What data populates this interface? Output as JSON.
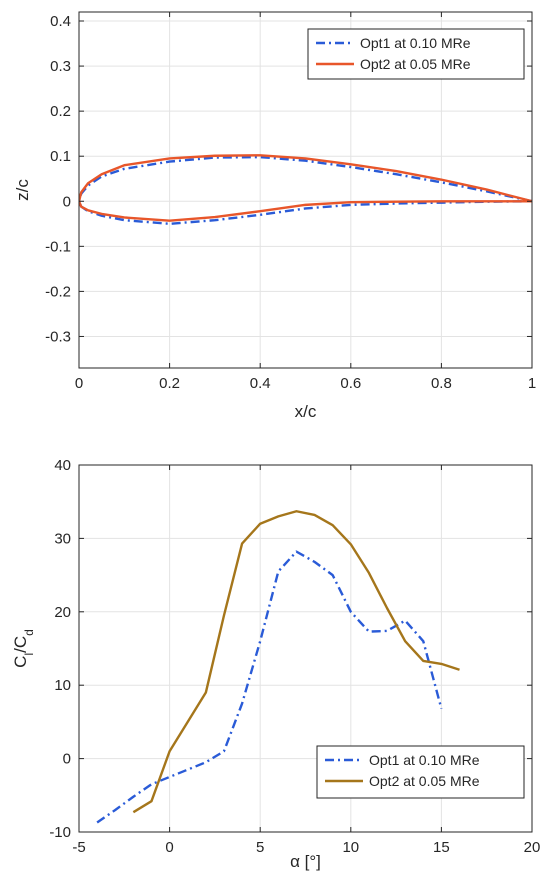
{
  "chart_data": [
    {
      "type": "line",
      "title": "",
      "xlabel": "x/c",
      "ylabel": "z/c",
      "xlim": [
        0,
        1
      ],
      "ylim": [
        -0.37,
        0.42
      ],
      "xticks": [
        0,
        0.2,
        0.4,
        0.6,
        0.8,
        1
      ],
      "xtick_labels": [
        "0",
        "0.2",
        "0.4",
        "0.6",
        "0.8",
        "1"
      ],
      "yticks": [
        -0.3,
        -0.2,
        -0.1,
        0,
        0.1,
        0.2,
        0.3,
        0.4
      ],
      "ytick_labels": [
        "-0.3",
        "-0.2",
        "-0.1",
        "0",
        "0.1",
        "0.2",
        "0.3",
        "0.4"
      ],
      "grid": true,
      "legend_position": "top-right",
      "series": [
        {
          "name": "Opt1 at 0.10 MRe",
          "color": "#2a5bd7",
          "style": "dash-dot",
          "x": [
            1.0,
            0.9,
            0.8,
            0.7,
            0.6,
            0.5,
            0.4,
            0.3,
            0.2,
            0.1,
            0.05,
            0.02,
            0.005,
            0.0,
            0.005,
            0.02,
            0.05,
            0.1,
            0.2,
            0.3,
            0.4,
            0.5,
            0.6,
            0.7,
            0.8,
            0.9,
            1.0
          ],
          "y": [
            0.0,
            0.022,
            0.042,
            0.06,
            0.076,
            0.09,
            0.098,
            0.097,
            0.088,
            0.072,
            0.055,
            0.035,
            0.017,
            0.0,
            -0.012,
            -0.022,
            -0.032,
            -0.042,
            -0.05,
            -0.042,
            -0.03,
            -0.016,
            -0.008,
            -0.005,
            -0.003,
            -0.001,
            0.0
          ]
        },
        {
          "name": "Opt2 at 0.05 MRe",
          "color": "#e8562a",
          "style": "solid",
          "x": [
            1.0,
            0.9,
            0.8,
            0.7,
            0.6,
            0.5,
            0.4,
            0.3,
            0.2,
            0.1,
            0.05,
            0.02,
            0.005,
            0.0,
            0.005,
            0.02,
            0.05,
            0.1,
            0.2,
            0.3,
            0.4,
            0.5,
            0.6,
            0.7,
            0.8,
            0.9,
            1.0
          ],
          "y": [
            0.0,
            0.026,
            0.048,
            0.067,
            0.082,
            0.095,
            0.102,
            0.101,
            0.095,
            0.08,
            0.06,
            0.04,
            0.02,
            0.0,
            -0.012,
            -0.02,
            -0.028,
            -0.036,
            -0.043,
            -0.035,
            -0.022,
            -0.008,
            -0.002,
            -0.001,
            0.0,
            0.0,
            0.0
          ]
        }
      ]
    },
    {
      "type": "line",
      "title": "",
      "xlabel": "α [°]",
      "ylabel": "Cl/Cd",
      "ylabel_parts": {
        "base": "C",
        "sub1": "l",
        "mid": "/C",
        "sub2": "d"
      },
      "xlim": [
        -5,
        20
      ],
      "ylim": [
        -10,
        40
      ],
      "xticks": [
        -5,
        0,
        5,
        10,
        15,
        20
      ],
      "xtick_labels": [
        "-5",
        "0",
        "5",
        "10",
        "15",
        "20"
      ],
      "yticks": [
        -10,
        0,
        10,
        20,
        30,
        40
      ],
      "ytick_labels": [
        "-10",
        "0",
        "10",
        "20",
        "30",
        "40"
      ],
      "grid": true,
      "legend_position": "bottom-right",
      "series": [
        {
          "name": "Opt1 at 0.10 MRe",
          "color": "#2a5bd7",
          "style": "dash-dot",
          "x": [
            -4,
            -3,
            -2,
            -1,
            0,
            1,
            2,
            3,
            4,
            5,
            6,
            7,
            8,
            9,
            10,
            11,
            12,
            13,
            14,
            15
          ],
          "y": [
            -8.7,
            -7,
            -5.2,
            -3.5,
            -2.5,
            -1.5,
            -0.5,
            1,
            7.5,
            16,
            25.5,
            28.2,
            26.8,
            25,
            20,
            17.3,
            17.4,
            18.8,
            16,
            6.8
          ]
        },
        {
          "name": "Opt2 at 0.05 MRe",
          "color": "#a5761b",
          "style": "solid",
          "x": [
            -2,
            -1,
            0,
            1,
            2,
            3,
            4,
            5,
            6,
            7,
            8,
            9,
            10,
            11,
            12,
            13,
            14,
            15,
            16
          ],
          "y": [
            -7.3,
            -5.8,
            1,
            5,
            9,
            19.5,
            29.3,
            32,
            33,
            33.7,
            33.2,
            31.8,
            29.2,
            25.3,
            20.5,
            16,
            13.3,
            12.9,
            12.1
          ]
        }
      ]
    }
  ]
}
